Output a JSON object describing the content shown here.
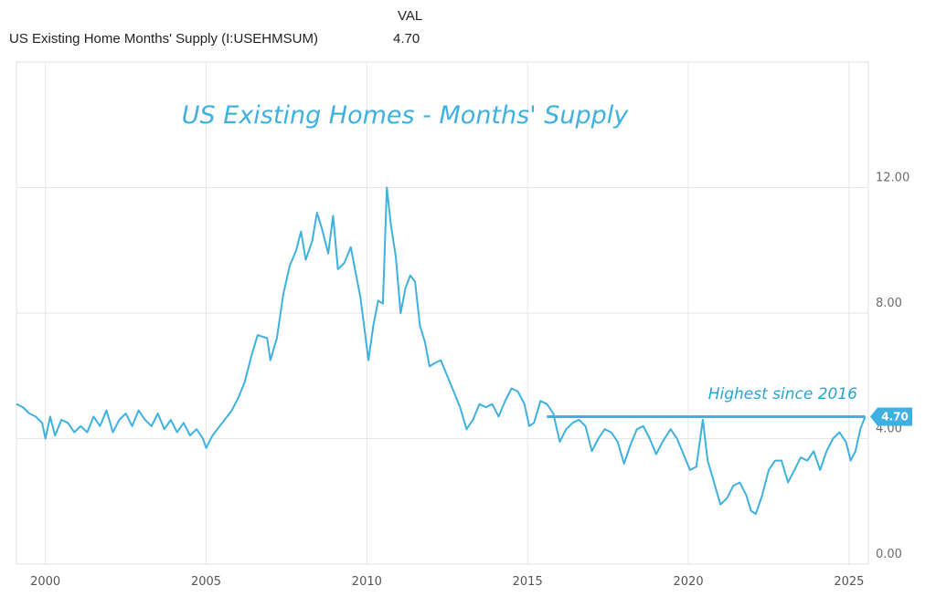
{
  "legend": {
    "header": "VAL",
    "series_name": "US Existing Home Months' Supply (I:USEHMSUM)",
    "series_value": "4.70"
  },
  "chart_data": {
    "type": "line",
    "title": "US Existing Homes - Months' Supply",
    "annotation": "Highest since 2016",
    "line_color": "#3eb1e0",
    "current_value_label": "4.70",
    "reference_line": {
      "value": 4.7,
      "x_start": 2015.6,
      "x_end": 2025.5
    },
    "xlim": [
      1999.1,
      2025.6
    ],
    "ylim": [
      0,
      16
    ],
    "x_ticks": [
      2000,
      2005,
      2010,
      2015,
      2020,
      2025
    ],
    "x_tick_labels": [
      "2000",
      "2005",
      "2010",
      "2015",
      "2020",
      "2025"
    ],
    "y_ticks": [
      0,
      4,
      8,
      12
    ],
    "y_tick_labels": [
      "0.00",
      "4.00",
      "8.00",
      "12.00"
    ],
    "grid": true,
    "series": [
      {
        "values": [
          [
            1999.1,
            5.1
          ],
          [
            1999.3,
            5.0
          ],
          [
            1999.5,
            4.8
          ],
          [
            1999.7,
            4.7
          ],
          [
            1999.9,
            4.5
          ],
          [
            2000.0,
            4.0
          ],
          [
            2000.15,
            4.7
          ],
          [
            2000.3,
            4.1
          ],
          [
            2000.5,
            4.6
          ],
          [
            2000.7,
            4.5
          ],
          [
            2000.9,
            4.2
          ],
          [
            2001.1,
            4.4
          ],
          [
            2001.3,
            4.2
          ],
          [
            2001.5,
            4.7
          ],
          [
            2001.7,
            4.4
          ],
          [
            2001.9,
            4.9
          ],
          [
            2002.1,
            4.2
          ],
          [
            2002.3,
            4.6
          ],
          [
            2002.5,
            4.8
          ],
          [
            2002.7,
            4.4
          ],
          [
            2002.9,
            4.9
          ],
          [
            2003.1,
            4.6
          ],
          [
            2003.3,
            4.4
          ],
          [
            2003.5,
            4.8
          ],
          [
            2003.7,
            4.3
          ],
          [
            2003.9,
            4.6
          ],
          [
            2004.1,
            4.2
          ],
          [
            2004.3,
            4.5
          ],
          [
            2004.5,
            4.1
          ],
          [
            2004.7,
            4.3
          ],
          [
            2004.9,
            4.0
          ],
          [
            2005.0,
            3.7
          ],
          [
            2005.2,
            4.1
          ],
          [
            2005.5,
            4.5
          ],
          [
            2005.8,
            4.9
          ],
          [
            2006.0,
            5.3
          ],
          [
            2006.2,
            5.8
          ],
          [
            2006.4,
            6.6
          ],
          [
            2006.6,
            7.3
          ],
          [
            2006.9,
            7.2
          ],
          [
            2007.0,
            6.5
          ],
          [
            2007.2,
            7.2
          ],
          [
            2007.4,
            8.6
          ],
          [
            2007.6,
            9.5
          ],
          [
            2007.8,
            10.0
          ],
          [
            2007.95,
            10.6
          ],
          [
            2008.1,
            9.7
          ],
          [
            2008.3,
            10.3
          ],
          [
            2008.45,
            11.2
          ],
          [
            2008.6,
            10.7
          ],
          [
            2008.8,
            9.9
          ],
          [
            2008.95,
            11.1
          ],
          [
            2009.1,
            9.4
          ],
          [
            2009.3,
            9.6
          ],
          [
            2009.5,
            10.1
          ],
          [
            2009.65,
            9.3
          ],
          [
            2009.8,
            8.5
          ],
          [
            2009.95,
            7.3
          ],
          [
            2010.05,
            6.5
          ],
          [
            2010.2,
            7.6
          ],
          [
            2010.35,
            8.4
          ],
          [
            2010.5,
            8.3
          ],
          [
            2010.62,
            12.0
          ],
          [
            2010.75,
            10.8
          ],
          [
            2010.9,
            9.8
          ],
          [
            2011.05,
            8.0
          ],
          [
            2011.2,
            8.8
          ],
          [
            2011.35,
            9.2
          ],
          [
            2011.5,
            9.0
          ],
          [
            2011.65,
            7.6
          ],
          [
            2011.8,
            7.1
          ],
          [
            2011.95,
            6.3
          ],
          [
            2012.1,
            6.4
          ],
          [
            2012.3,
            6.5
          ],
          [
            2012.5,
            6.0
          ],
          [
            2012.7,
            5.5
          ],
          [
            2012.9,
            5.0
          ],
          [
            2013.1,
            4.3
          ],
          [
            2013.3,
            4.6
          ],
          [
            2013.5,
            5.1
          ],
          [
            2013.7,
            5.0
          ],
          [
            2013.9,
            5.1
          ],
          [
            2014.1,
            4.7
          ],
          [
            2014.3,
            5.2
          ],
          [
            2014.5,
            5.6
          ],
          [
            2014.7,
            5.5
          ],
          [
            2014.9,
            5.1
          ],
          [
            2015.05,
            4.4
          ],
          [
            2015.2,
            4.5
          ],
          [
            2015.4,
            5.2
          ],
          [
            2015.6,
            5.1
          ],
          [
            2015.8,
            4.8
          ],
          [
            2016.0,
            3.9
          ],
          [
            2016.2,
            4.3
          ],
          [
            2016.4,
            4.5
          ],
          [
            2016.6,
            4.6
          ],
          [
            2016.8,
            4.4
          ],
          [
            2017.0,
            3.6
          ],
          [
            2017.2,
            4.0
          ],
          [
            2017.4,
            4.3
          ],
          [
            2017.6,
            4.2
          ],
          [
            2017.8,
            3.9
          ],
          [
            2018.0,
            3.2
          ],
          [
            2018.2,
            3.8
          ],
          [
            2018.4,
            4.3
          ],
          [
            2018.6,
            4.4
          ],
          [
            2018.8,
            4.0
          ],
          [
            2019.0,
            3.5
          ],
          [
            2019.2,
            3.9
          ],
          [
            2019.45,
            4.3
          ],
          [
            2019.65,
            4.0
          ],
          [
            2019.85,
            3.5
          ],
          [
            2020.05,
            3.0
          ],
          [
            2020.25,
            3.1
          ],
          [
            2020.45,
            4.6
          ],
          [
            2020.6,
            3.3
          ],
          [
            2020.8,
            2.6
          ],
          [
            2021.0,
            1.9
          ],
          [
            2021.2,
            2.1
          ],
          [
            2021.4,
            2.5
          ],
          [
            2021.6,
            2.6
          ],
          [
            2021.8,
            2.2
          ],
          [
            2021.95,
            1.7
          ],
          [
            2022.1,
            1.6
          ],
          [
            2022.3,
            2.2
          ],
          [
            2022.5,
            3.0
          ],
          [
            2022.7,
            3.3
          ],
          [
            2022.9,
            3.3
          ],
          [
            2023.1,
            2.6
          ],
          [
            2023.3,
            3.0
          ],
          [
            2023.5,
            3.4
          ],
          [
            2023.7,
            3.3
          ],
          [
            2023.9,
            3.6
          ],
          [
            2024.1,
            3.0
          ],
          [
            2024.3,
            3.6
          ],
          [
            2024.5,
            4.0
          ],
          [
            2024.7,
            4.2
          ],
          [
            2024.9,
            3.9
          ],
          [
            2025.05,
            3.3
          ],
          [
            2025.2,
            3.6
          ],
          [
            2025.35,
            4.3
          ],
          [
            2025.5,
            4.7
          ]
        ]
      }
    ]
  }
}
